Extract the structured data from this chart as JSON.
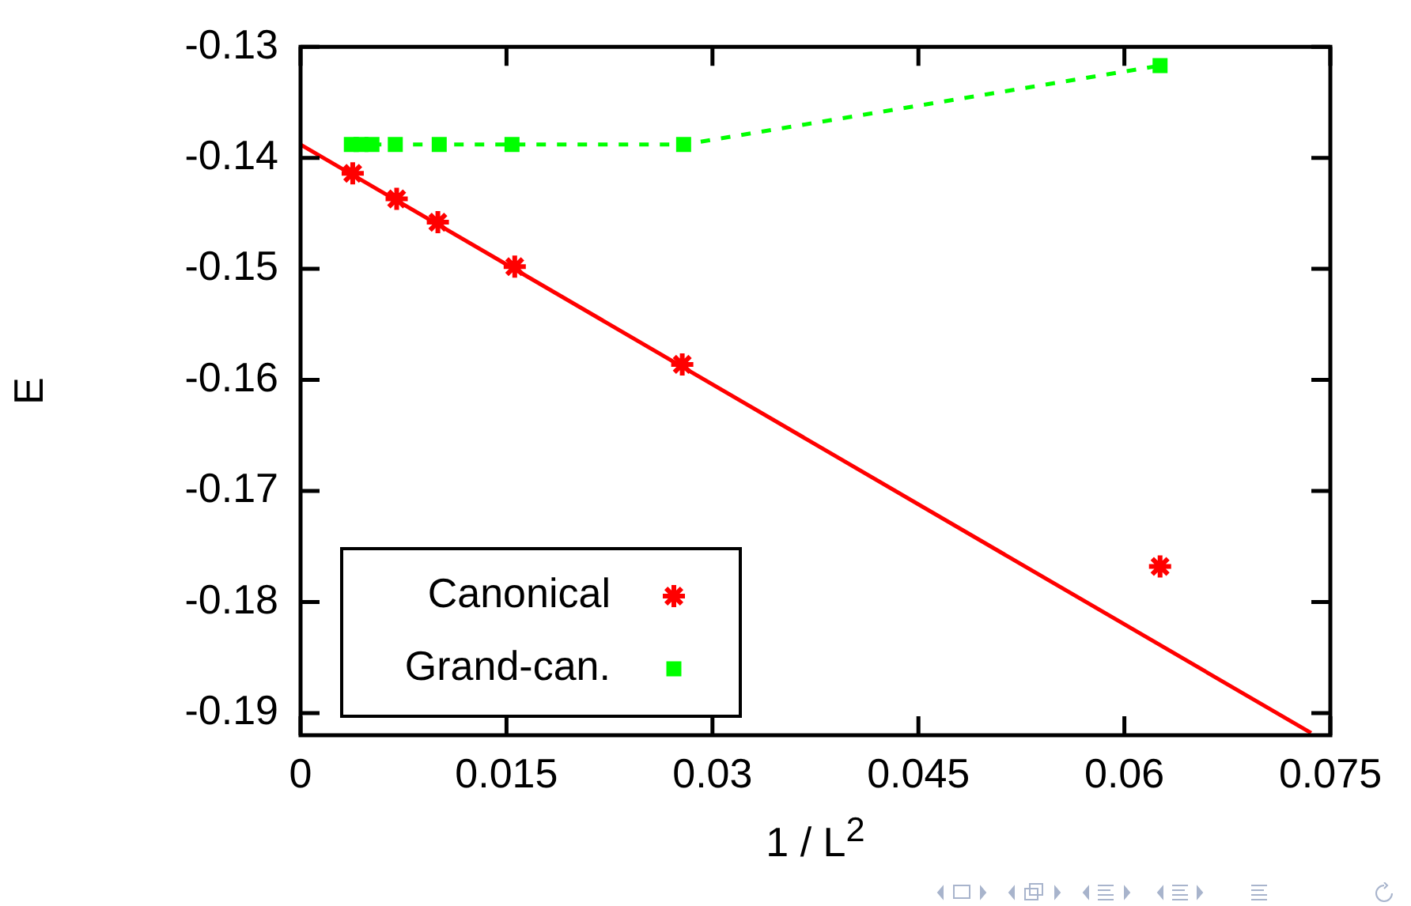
{
  "chart_data": {
    "type": "scatter",
    "xlabel": "1 / L$^{2}$",
    "ylabel": "E",
    "xlim": [
      0,
      0.075
    ],
    "xticks": [
      0,
      0.015,
      0.03,
      0.045,
      0.06,
      0.075
    ],
    "ylim": [
      -0.192,
      -0.13
    ],
    "yticks": [
      -0.19,
      -0.18,
      -0.17,
      -0.16,
      -0.15,
      -0.14,
      -0.13
    ],
    "grid": false,
    "legend": "bottom left",
    "series": [
      {
        "name": "Canonical",
        "marker": "cross",
        "color": "#ff0000",
        "x": [
          0.0038,
          0.007,
          0.01,
          0.0156,
          0.0278,
          0.0626
        ],
        "values": [
          -0.1414,
          -0.1437,
          -0.1458,
          -0.1498,
          -0.1586,
          -0.1768
        ]
      },
      {
        "name": "Grand-can.",
        "type": "line",
        "marker": "square",
        "line_style": "dotted",
        "color": "#00ff00",
        "x": [
          0.0037,
          0.0044,
          0.0052,
          0.0069,
          0.0101,
          0.0154,
          0.0279,
          0.0626
        ],
        "values": [
          -0.1388,
          -0.1388,
          -0.1388,
          -0.1388,
          -0.1388,
          -0.1388,
          -0.1388,
          -0.1317
        ]
      },
      {
        "type": "line",
        "marker": "none",
        "line_style": "solid",
        "color": "#ff0000",
        "x": [
          0,
          0.0736
        ],
        "values": [
          -0.1388,
          -0.1918
        ]
      }
    ]
  }
}
